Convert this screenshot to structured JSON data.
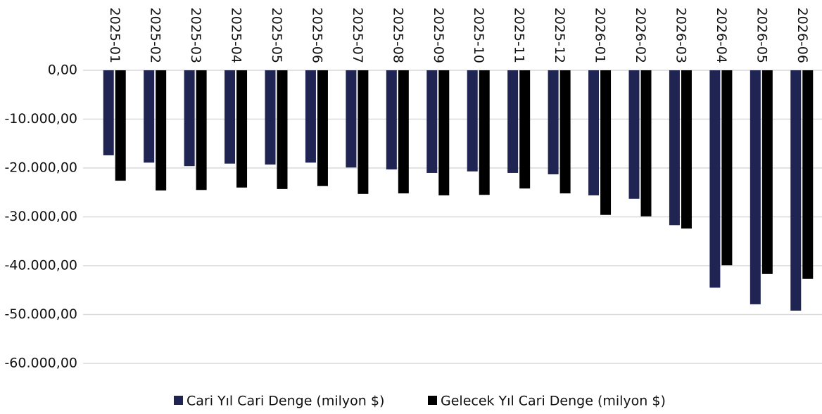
{
  "chart_data": {
    "type": "bar",
    "categories": [
      "2025-01",
      "2025-02",
      "2025-03",
      "2025-04",
      "2025-05",
      "2025-06",
      "2025-07",
      "2025-08",
      "2025-09",
      "2025-10",
      "2025-11",
      "2025-12",
      "2026-01",
      "2026-02",
      "2026-03",
      "2026-04",
      "2026-05",
      "2026-06"
    ],
    "series": [
      {
        "name": "Cari Yıl Cari Denge (milyon $)",
        "color": "#1f2452",
        "values": [
          -17400,
          -18900,
          -19600,
          -19100,
          -19300,
          -18900,
          -19900,
          -20300,
          -21000,
          -20700,
          -21000,
          -21300,
          -25600,
          -26300,
          -31700,
          -44500,
          -47900,
          -49200
        ]
      },
      {
        "name": "Gelecek Yıl Cari Denge (milyon $)",
        "color": "#000000",
        "values": [
          -22600,
          -24600,
          -24500,
          -24000,
          -24300,
          -23700,
          -25300,
          -25200,
          -25600,
          -25500,
          -24200,
          -25200,
          -29600,
          -29900,
          -32400,
          -39900,
          -41700,
          -42700
        ]
      }
    ],
    "ylim": [
      -60000,
      0
    ],
    "yticks": [
      {
        "value": 0,
        "label": "0,00"
      },
      {
        "value": -10000,
        "label": "-10.000,00"
      },
      {
        "value": -20000,
        "label": "-20.000,00"
      },
      {
        "value": -30000,
        "label": "-30.000,00"
      },
      {
        "value": -40000,
        "label": "-40.000,00"
      },
      {
        "value": -50000,
        "label": "-50.000,00"
      },
      {
        "value": -60000,
        "label": "-60.000,00"
      }
    ],
    "grid": true,
    "legend": "bottom"
  }
}
